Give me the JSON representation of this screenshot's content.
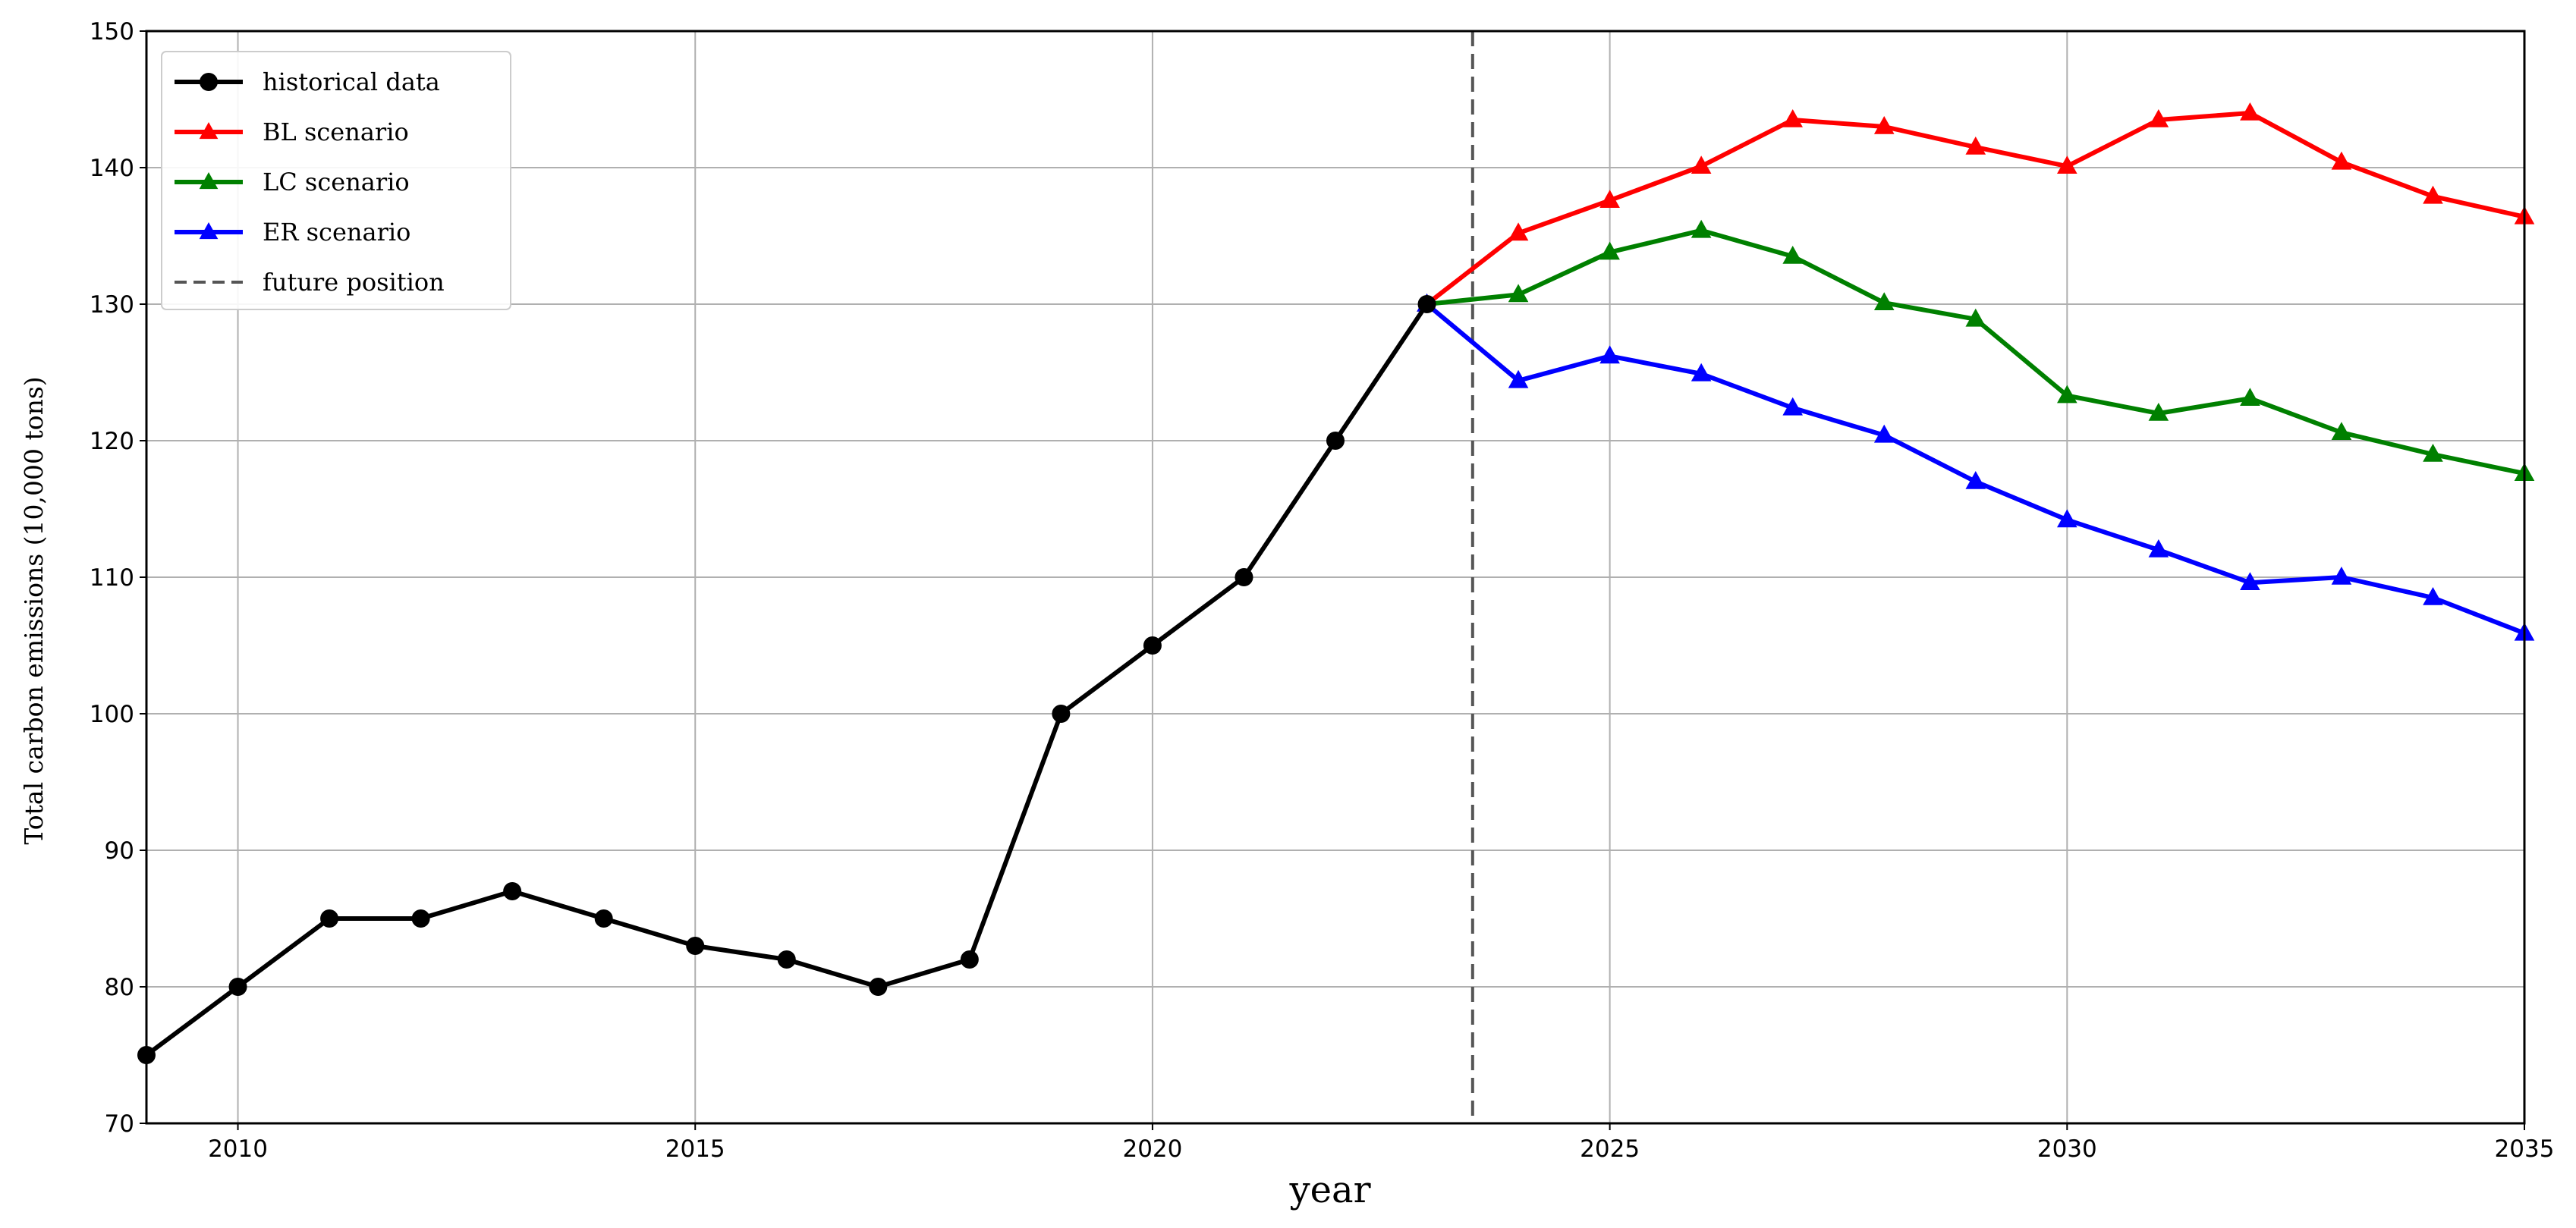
{
  "chart_data": {
    "type": "line",
    "xlabel": "year",
    "ylabel": "Total carbon emissions (10,000 tons)",
    "xlim": [
      2009,
      2035
    ],
    "ylim": [
      70,
      150
    ],
    "x_ticks": [
      2010,
      2015,
      2020,
      2025,
      2030,
      2035
    ],
    "y_ticks": [
      70,
      80,
      90,
      100,
      110,
      120,
      130,
      140,
      150
    ],
    "grid": true,
    "legend_position": "top-left",
    "future_position_x": 2023.5,
    "series": [
      {
        "name": "historical data",
        "color": "#000000",
        "marker": "circle",
        "x": [
          2009,
          2010,
          2011,
          2012,
          2013,
          2014,
          2015,
          2016,
          2017,
          2018,
          2019,
          2020,
          2021,
          2022,
          2023
        ],
        "values": [
          75,
          80,
          85,
          85,
          87,
          85,
          83,
          82,
          80,
          82,
          100,
          105,
          110,
          120,
          130
        ]
      },
      {
        "name": "BL scenario",
        "color": "#ff0000",
        "marker": "triangle",
        "x": [
          2023,
          2024,
          2025,
          2026,
          2027,
          2028,
          2029,
          2030,
          2031,
          2032,
          2033,
          2034,
          2035
        ],
        "values": [
          130,
          135.2,
          137.6,
          140.1,
          143.5,
          143.0,
          141.5,
          140.1,
          143.5,
          144.0,
          140.4,
          137.9,
          136.4
        ]
      },
      {
        "name": "LC scenario",
        "color": "#008000",
        "marker": "triangle",
        "x": [
          2023,
          2024,
          2025,
          2026,
          2027,
          2028,
          2029,
          2030,
          2031,
          2032,
          2033,
          2034,
          2035
        ],
        "values": [
          130,
          130.7,
          133.8,
          135.4,
          133.5,
          130.1,
          128.9,
          123.3,
          122.0,
          123.1,
          120.6,
          119.0,
          117.6
        ]
      },
      {
        "name": "ER scenario",
        "color": "#0000ff",
        "marker": "triangle",
        "x": [
          2023,
          2024,
          2025,
          2026,
          2027,
          2028,
          2029,
          2030,
          2031,
          2032,
          2033,
          2034,
          2035
        ],
        "values": [
          130,
          124.4,
          126.2,
          124.9,
          122.4,
          120.4,
          117.0,
          114.2,
          112.0,
          109.6,
          110.0,
          108.5,
          105.9
        ]
      }
    ],
    "reference_lines": [
      {
        "name": "future position",
        "color": "#555555",
        "style": "dashed",
        "x": 2023.5
      }
    ]
  }
}
